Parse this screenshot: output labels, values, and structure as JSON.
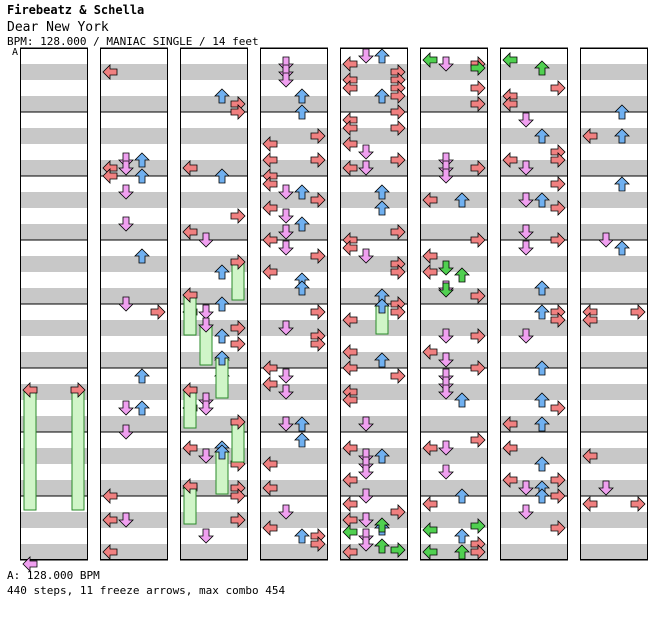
{
  "header": {
    "artist": "Firebeatz & Schella",
    "title": "Dear New York",
    "info": "BPM: 128.000 / MANIAC SINGLE / 14 feet",
    "bpm_change_marker": "A"
  },
  "footer": {
    "bpm_note": "A: 128.000 BPM",
    "summary": "440 steps, 11 freeze arrows, max combo 454"
  },
  "colors": {
    "left": "#f08080",
    "down": "#f0a0f0",
    "up": "#70b0f0",
    "right": "#f08080",
    "freeze_body": "#d0f5c8",
    "freeze_edge": "#2a8a2a",
    "special": "#50d050",
    "beat_band": "#c8c8c8"
  },
  "chart_data": {
    "type": "step-chart",
    "mode": "MANIAC SINGLE",
    "bpm": 128.0,
    "difficulty_feet": 14,
    "steps": 440,
    "freeze_arrows": 11,
    "max_combo": 454,
    "lanes": [
      "left",
      "down",
      "up",
      "right"
    ],
    "measures_per_column": 8,
    "columns": 8
  }
}
